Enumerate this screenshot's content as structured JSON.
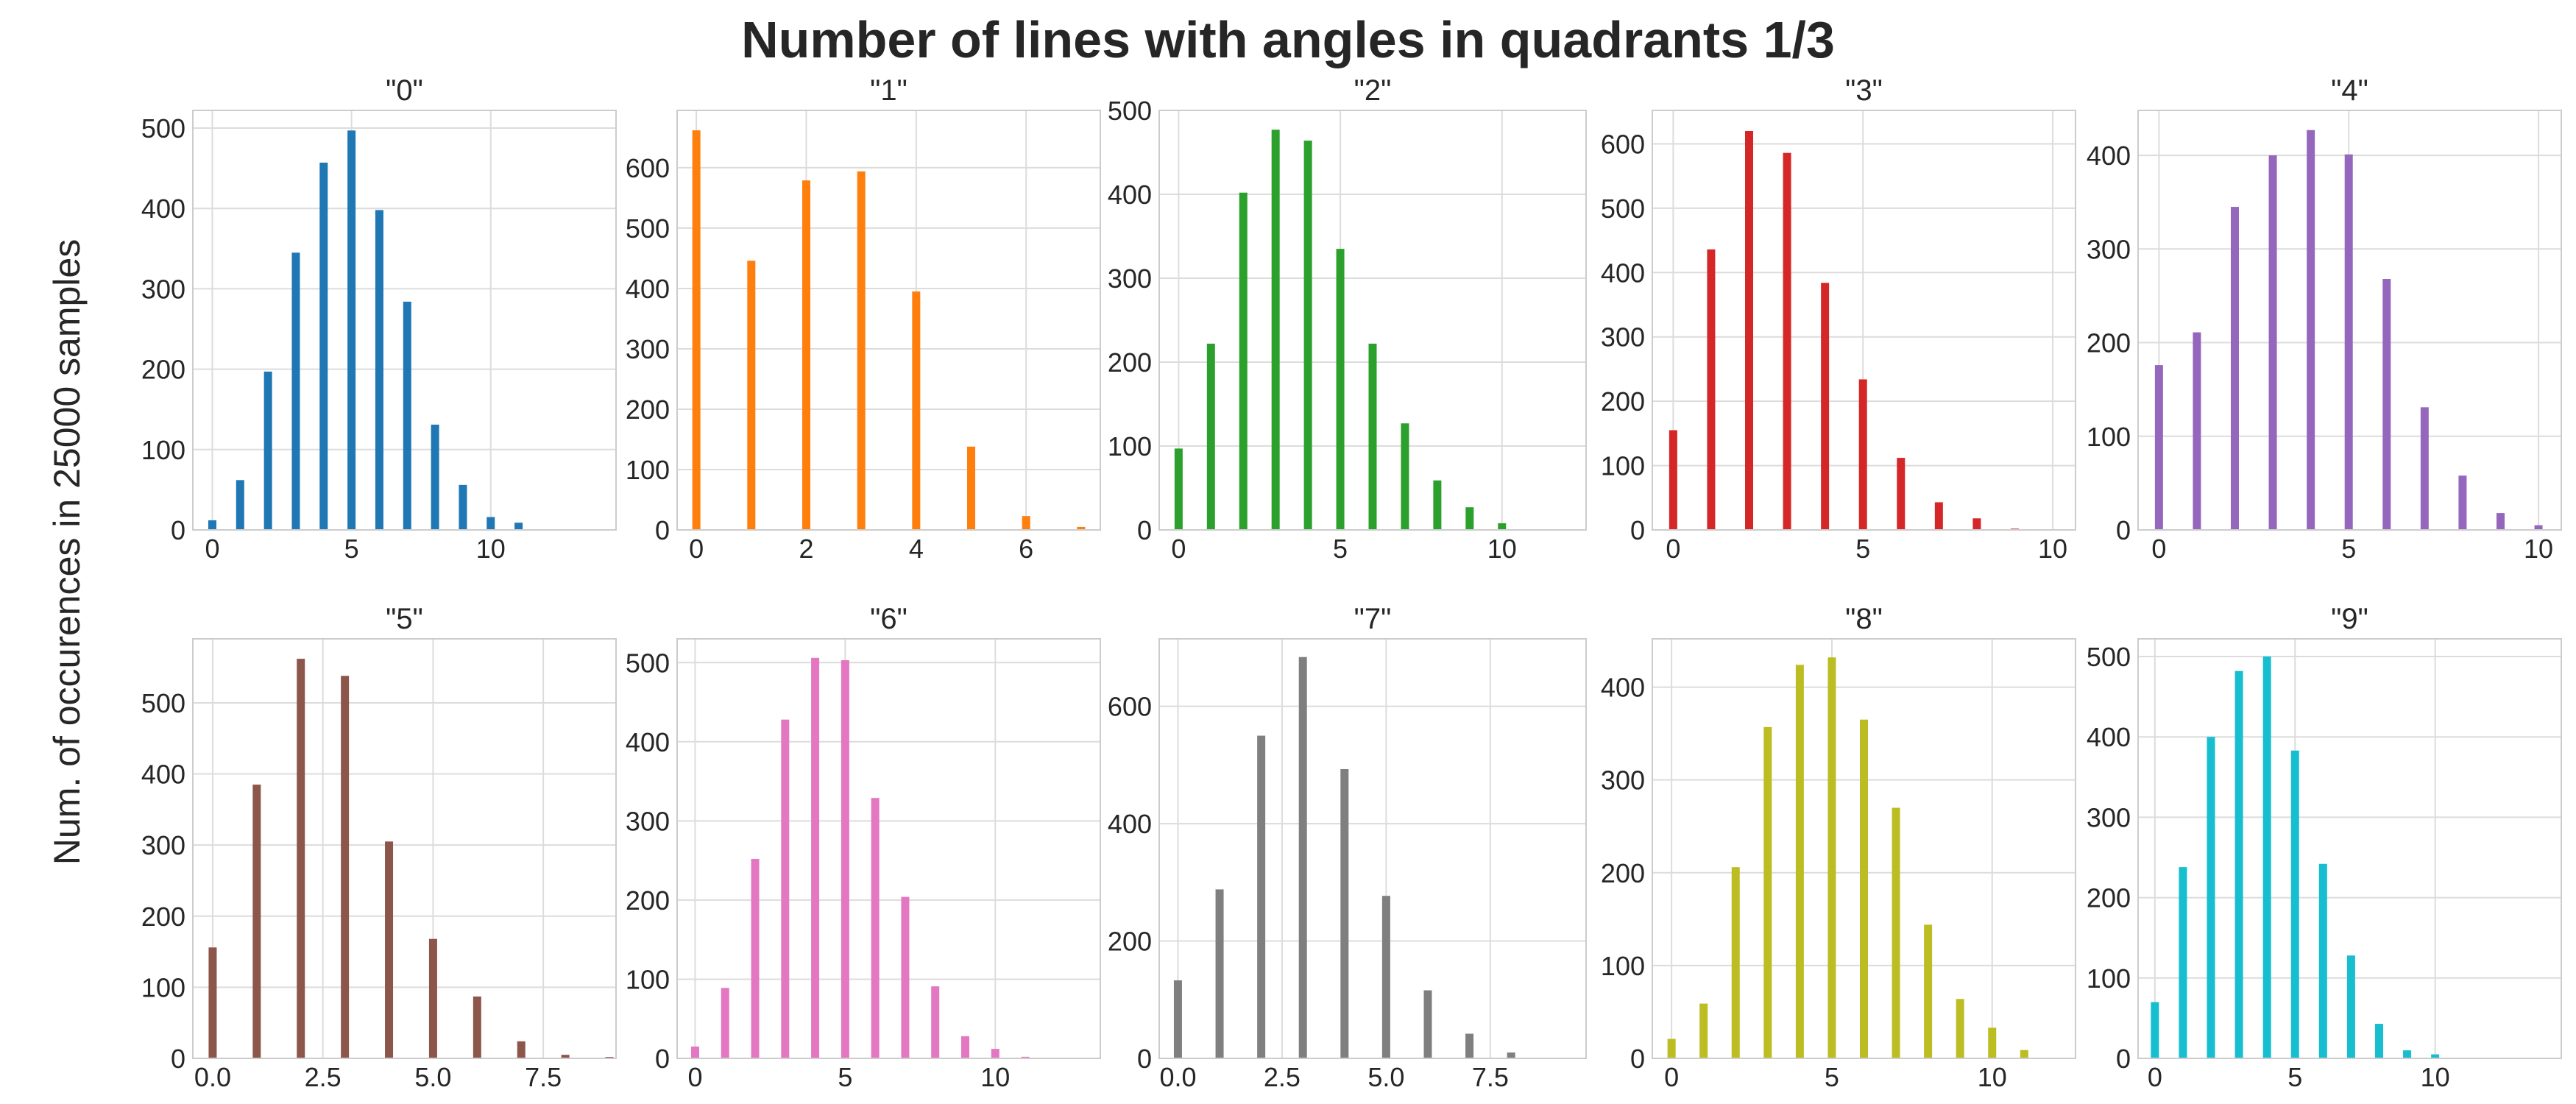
{
  "figure": {
    "title": "Number of lines with angles in quadrants 1/3",
    "ylabel": "Num. of occurences in 25000 samples"
  },
  "chart_data": [
    {
      "type": "bar",
      "title": "\"0\"",
      "color": "#1f77b4",
      "x": [
        0,
        1,
        2,
        3,
        4,
        5,
        6,
        7,
        8,
        9,
        10,
        11
      ],
      "values": [
        12,
        62,
        197,
        345,
        457,
        497,
        398,
        284,
        131,
        56,
        16,
        9
      ],
      "xlim": [
        -0.7,
        14.5
      ],
      "ylim": [
        0,
        522
      ],
      "xticks": [
        0,
        5,
        10
      ],
      "xticklabels": [
        "0",
        "5",
        "10"
      ],
      "yticks": [
        0,
        100,
        200,
        300,
        400,
        500
      ],
      "yticklabels": [
        "0",
        "100",
        "200",
        "300",
        "400",
        "500"
      ],
      "grid": true
    },
    {
      "type": "bar",
      "title": "\"1\"",
      "color": "#ff7f0e",
      "x": [
        0,
        1,
        2,
        3,
        4,
        5,
        6,
        7
      ],
      "values": [
        662,
        446,
        579,
        594,
        395,
        138,
        23,
        5
      ],
      "xlim": [
        -0.35,
        7.35
      ],
      "ylim": [
        0,
        695
      ],
      "xticks": [
        0,
        2,
        4,
        6
      ],
      "xticklabels": [
        "0",
        "2",
        "4",
        "6"
      ],
      "yticks": [
        0,
        100,
        200,
        300,
        400,
        500,
        600
      ],
      "yticklabels": [
        "0",
        "100",
        "200",
        "300",
        "400",
        "500",
        "600"
      ],
      "grid": true
    },
    {
      "type": "bar",
      "title": "\"2\"",
      "color": "#2ca02c",
      "x": [
        0,
        1,
        2,
        3,
        4,
        5,
        6,
        7,
        8,
        9,
        10
      ],
      "values": [
        97,
        222,
        402,
        477,
        464,
        335,
        222,
        127,
        59,
        27,
        8
      ],
      "xlim": [
        -0.6,
        12.6
      ],
      "ylim": [
        0,
        500
      ],
      "xticks": [
        0,
        5,
        10
      ],
      "xticklabels": [
        "0",
        "5",
        "10"
      ],
      "yticks": [
        0,
        100,
        200,
        300,
        400,
        500
      ],
      "yticklabels": [
        "0",
        "100",
        "200",
        "300",
        "400",
        "500"
      ],
      "grid": true
    },
    {
      "type": "bar",
      "title": "\"3\"",
      "color": "#d62728",
      "x": [
        0,
        1,
        2,
        3,
        4,
        5,
        6,
        7,
        8,
        9
      ],
      "values": [
        155,
        436,
        620,
        586,
        384,
        234,
        112,
        43,
        18,
        2
      ],
      "xlim": [
        -0.55,
        10.6
      ],
      "ylim": [
        0,
        652
      ],
      "xticks": [
        0,
        5,
        10
      ],
      "xticklabels": [
        "0",
        "5",
        "10"
      ],
      "yticks": [
        0,
        100,
        200,
        300,
        400,
        500,
        600
      ],
      "yticklabels": [
        "0",
        "100",
        "200",
        "300",
        "400",
        "500",
        "600"
      ],
      "grid": true
    },
    {
      "type": "bar",
      "title": "\"4\"",
      "color": "#9467bd",
      "x": [
        0,
        1,
        2,
        3,
        4,
        5,
        6,
        7,
        8,
        9,
        10
      ],
      "values": [
        176,
        211,
        345,
        400,
        427,
        401,
        268,
        131,
        58,
        18,
        5
      ],
      "xlim": [
        -0.55,
        10.6
      ],
      "ylim": [
        0,
        448
      ],
      "xticks": [
        0,
        5,
        10
      ],
      "xticklabels": [
        "0",
        "5",
        "10"
      ],
      "yticks": [
        0,
        100,
        200,
        300,
        400
      ],
      "yticklabels": [
        "0",
        "100",
        "200",
        "300",
        "400"
      ],
      "grid": true
    },
    {
      "type": "bar",
      "title": "\"5\"",
      "color": "#8c564b",
      "x": [
        0,
        1,
        2,
        3,
        4,
        5,
        6,
        7,
        8,
        9
      ],
      "values": [
        156,
        385,
        562,
        538,
        305,
        168,
        87,
        24,
        5,
        2
      ],
      "xlim": [
        -0.45,
        9.15
      ],
      "ylim": [
        0,
        590
      ],
      "xticks": [
        0,
        2.5,
        5,
        7.5
      ],
      "xticklabels": [
        "0.0",
        "2.5",
        "5.0",
        "7.5"
      ],
      "yticks": [
        0,
        100,
        200,
        300,
        400,
        500
      ],
      "yticklabels": [
        "0",
        "100",
        "200",
        "300",
        "400",
        "500"
      ],
      "grid": true
    },
    {
      "type": "bar",
      "title": "\"6\"",
      "color": "#e377c2",
      "x": [
        0,
        1,
        2,
        3,
        4,
        5,
        6,
        7,
        8,
        9,
        10,
        11
      ],
      "values": [
        15,
        89,
        252,
        428,
        506,
        503,
        329,
        204,
        91,
        28,
        12,
        2
      ],
      "xlim": [
        -0.6,
        13.5
      ],
      "ylim": [
        0,
        530
      ],
      "xticks": [
        0,
        5,
        10
      ],
      "xticklabels": [
        "0",
        "5",
        "10"
      ],
      "yticks": [
        0,
        100,
        200,
        300,
        400,
        500
      ],
      "yticklabels": [
        "0",
        "100",
        "200",
        "300",
        "400",
        "500"
      ],
      "grid": true
    },
    {
      "type": "bar",
      "title": "\"7\"",
      "color": "#7f7f7f",
      "x": [
        0,
        1,
        2,
        3,
        4,
        5,
        6,
        7,
        8
      ],
      "values": [
        133,
        288,
        550,
        684,
        493,
        277,
        116,
        42,
        10
      ],
      "xlim": [
        -0.45,
        9.8
      ],
      "ylim": [
        0,
        715
      ],
      "xticks": [
        0,
        2.5,
        5,
        7.5
      ],
      "xticklabels": [
        "0.0",
        "2.5",
        "5.0",
        "7.5"
      ],
      "yticks": [
        0,
        200,
        400,
        600
      ],
      "yticklabels": [
        "0",
        "200",
        "400",
        "600"
      ],
      "grid": true
    },
    {
      "type": "bar",
      "title": "\"8\"",
      "color": "#bcbd22",
      "x": [
        0,
        1,
        2,
        3,
        4,
        5,
        6,
        7,
        8,
        9,
        10,
        11
      ],
      "values": [
        21,
        59,
        206,
        357,
        424,
        432,
        365,
        270,
        144,
        64,
        33,
        9
      ],
      "xlim": [
        -0.6,
        12.6
      ],
      "ylim": [
        0,
        452
      ],
      "xticks": [
        0,
        5,
        10
      ],
      "xticklabels": [
        "0",
        "5",
        "10"
      ],
      "yticks": [
        0,
        100,
        200,
        300,
        400
      ],
      "yticklabels": [
        "0",
        "100",
        "200",
        "300",
        "400"
      ],
      "grid": true
    },
    {
      "type": "bar",
      "title": "\"9\"",
      "color": "#17becf",
      "x": [
        0,
        1,
        2,
        3,
        4,
        5,
        6,
        7,
        8,
        9,
        10
      ],
      "values": [
        70,
        238,
        400,
        482,
        500,
        383,
        242,
        128,
        43,
        10,
        5
      ],
      "xlim": [
        -0.6,
        14.5
      ],
      "ylim": [
        0,
        522
      ],
      "xticks": [
        0,
        5,
        10
      ],
      "xticklabels": [
        "0",
        "5",
        "10"
      ],
      "yticks": [
        0,
        100,
        200,
        300,
        400,
        500
      ],
      "yticklabels": [
        "0",
        "100",
        "200",
        "300",
        "400",
        "500"
      ],
      "grid": true
    }
  ]
}
